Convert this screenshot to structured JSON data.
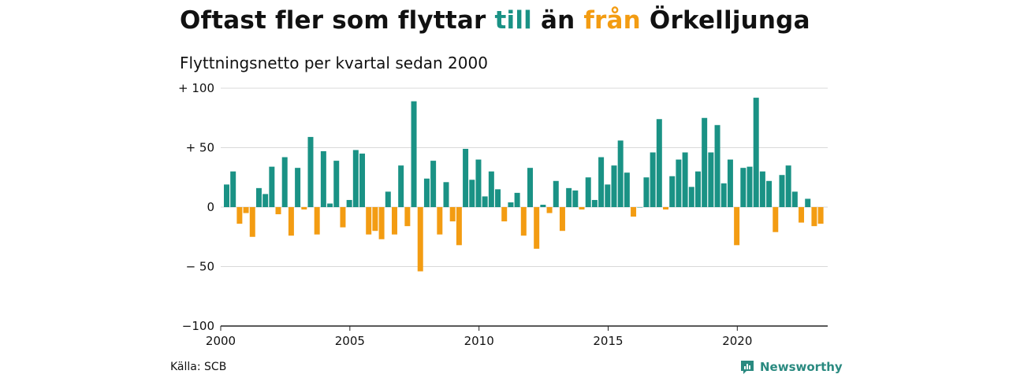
{
  "header": {
    "title_parts": [
      {
        "text": "Oftast fler som flyttar ",
        "color": "#111111"
      },
      {
        "text": "till",
        "color": "#1a9285"
      },
      {
        "text": " än ",
        "color": "#111111"
      },
      {
        "text": "från",
        "color": "#f39c12"
      },
      {
        "text": " Örkelljunga",
        "color": "#111111"
      }
    ],
    "subtitle": "Flyttningsnetto per kvartal sedan 2000"
  },
  "footer": {
    "source": "Källa: SCB",
    "brand": "Newsworthy",
    "brand_icon": "newsworthy-logo-icon"
  },
  "colors": {
    "positive": "#1a9285",
    "negative": "#f39c12",
    "grid": "#d9d9d9",
    "axis": "#222222"
  },
  "chart_data": {
    "type": "bar",
    "title": "",
    "xlabel": "",
    "ylabel": "",
    "ylim": [
      -100,
      100
    ],
    "yticks": [
      100,
      50,
      0,
      -50,
      -100
    ],
    "ytick_labels": [
      "+ 100",
      "+  50",
      "0",
      "− 50",
      "−100"
    ],
    "xticks": [
      2000,
      2005,
      2010,
      2015,
      2020
    ],
    "xlim": [
      2000,
      2023.5
    ],
    "grid": true,
    "start_year": 2000,
    "series": [
      {
        "values": [
          19,
          30,
          -14,
          -5,
          -25,
          16,
          11,
          34,
          -6,
          42,
          -24,
          33,
          -2,
          59,
          -23,
          47,
          3,
          39,
          -17,
          6,
          48,
          45,
          -23,
          -20,
          -27,
          13,
          -23,
          35,
          -16,
          89,
          -54,
          24,
          39,
          -23,
          21,
          -12,
          -32,
          49,
          23,
          40,
          9,
          30,
          15,
          -12,
          4,
          12,
          -24,
          33,
          -35,
          2,
          -5,
          22,
          -20,
          16,
          14,
          -2,
          25,
          6,
          42,
          19,
          35,
          56,
          29,
          -8,
          0,
          25,
          46,
          74,
          -2,
          26,
          40,
          46,
          17,
          30,
          75,
          46,
          69,
          20,
          40,
          -32,
          33,
          34,
          92,
          30,
          22,
          -21,
          27,
          35,
          13,
          -13,
          7,
          -16,
          -14
        ]
      }
    ]
  }
}
